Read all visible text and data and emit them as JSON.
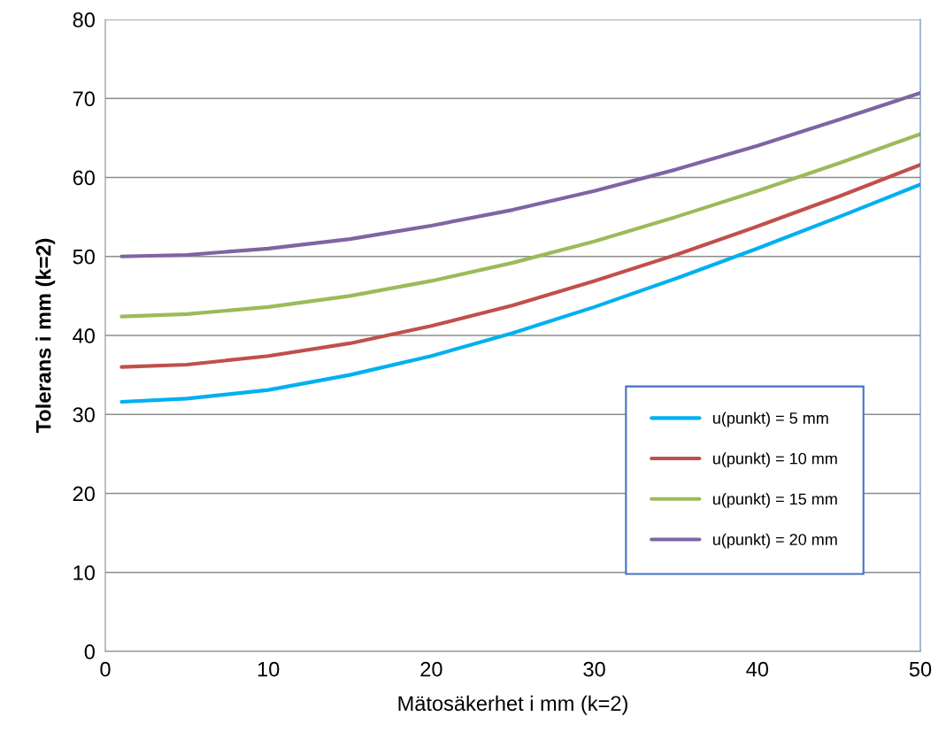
{
  "chart_data": {
    "type": "line",
    "xlabel": "Mätosäkerhet i mm (k=2)",
    "ylabel": "Tolerans i mm (k=2)",
    "x": [
      1,
      5,
      10,
      15,
      20,
      25,
      30,
      35,
      40,
      45,
      50
    ],
    "series": [
      {
        "name": "u(punkt) = 5 mm",
        "color": "#00b0f0",
        "values": [
          31.6,
          32.0,
          33.1,
          35.0,
          37.4,
          40.3,
          43.6,
          47.2,
          51.0,
          55.0,
          59.1
        ]
      },
      {
        "name": "u(punkt) = 10 mm",
        "color": "#c0504d",
        "values": [
          36.0,
          36.3,
          37.4,
          39.0,
          41.2,
          43.8,
          46.9,
          50.2,
          53.8,
          57.6,
          61.6
        ]
      },
      {
        "name": "u(punkt) = 15 mm",
        "color": "#9bbb59",
        "values": [
          42.4,
          42.7,
          43.6,
          45.0,
          46.9,
          49.2,
          51.9,
          55.0,
          58.3,
          61.8,
          65.5
        ]
      },
      {
        "name": "u(punkt) = 20 mm",
        "color": "#8064a2",
        "values": [
          50.0,
          50.2,
          51.0,
          52.2,
          53.9,
          55.9,
          58.3,
          61.0,
          64.0,
          67.3,
          70.7
        ]
      }
    ],
    "xlim": [
      0,
      50
    ],
    "xticks": [
      0,
      10,
      20,
      30,
      40,
      50
    ],
    "ylim": [
      0,
      80
    ],
    "yticks": [
      0,
      10,
      20,
      30,
      40,
      50,
      60,
      70,
      80
    ],
    "grid": "y",
    "legend": "lower right",
    "marker": "none",
    "line_style": "solid"
  }
}
